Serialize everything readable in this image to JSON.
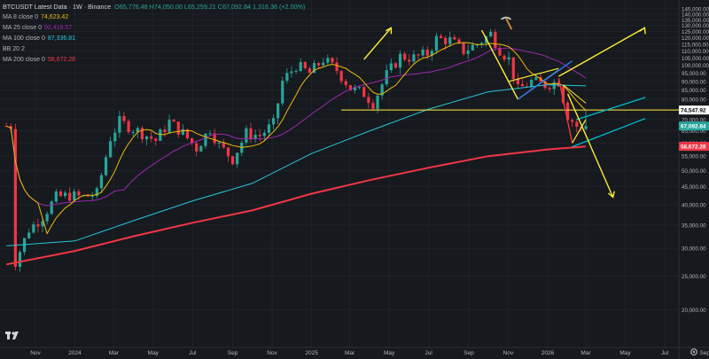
{
  "header": {
    "symbol": "BTCUSDT Latest Data · 1W · Binance",
    "ohlc": "O65,776.48 H74,050.00 L65,259.21 C67,092.84 1,316.36 (+2.00%)"
  },
  "indicators": [
    {
      "label": "MA 8 close 0",
      "value": "74,623.42",
      "color": "#f0b90b"
    },
    {
      "label": "MA 25 close 0",
      "value": "92,418.57",
      "color": "#9c27b0"
    },
    {
      "label": "MA 100 close 0",
      "value": "87,336.81",
      "color": "#26c6da"
    },
    {
      "label": "BB 20 2",
      "value": "",
      "color": "#787b86"
    },
    {
      "label": "MA 200 close 0",
      "value": "58,672.28",
      "color": "#f23645"
    }
  ],
  "colors": {
    "background": "#161a1e",
    "grid": "#1f2329",
    "up": "#26a69a",
    "down": "#f23645",
    "ma8": "#f0b90b",
    "ma25": "#9c27b0",
    "ma100": "#26c6da",
    "ma200": "#f23645",
    "drawing_yellow": "#ffeb3b",
    "drawing_blue": "#2979ff",
    "channel_cyan": "#00bcd4"
  },
  "icons": [
    "tradingview-logo-icon",
    "pickaxe-icon",
    "settings-gear-icon"
  ],
  "chart_data": {
    "type": "candlestick",
    "title": "BTCUSDT Latest Data · 1W · Binance",
    "scale": "log",
    "ylim": [
      16000,
      145000
    ],
    "y_ticks": [
      145000,
      140000,
      135000,
      130000,
      125000,
      120000,
      115000,
      110000,
      105000,
      100000,
      95000,
      90000,
      85000,
      80000,
      75000,
      70000,
      65000,
      60000,
      55000,
      50000,
      45000,
      40000,
      35000,
      30000,
      25000,
      20000
    ],
    "y_tick_labels": [
      "145,000.00",
      "140,000.00",
      "135,000.00",
      "130,000.00",
      "125,000.00",
      "120,000.00",
      "115,000.00",
      "110,000.00",
      "105,000.00",
      "100,000.00",
      "95,000.00",
      "90,000.00",
      "85,000.00",
      "80,000.00",
      "75,000.00",
      "70,000.00",
      "65,000.00",
      "60,000.00",
      "55,000.00",
      "50,000.00",
      "45,000.00",
      "40,000.00",
      "35,000.00",
      "30,000.00",
      "25,000.00",
      "20,000.00"
    ],
    "x_ticks": [
      {
        "label": "Nov",
        "date": "2023-11"
      },
      {
        "label": "2024",
        "date": "2024-01"
      },
      {
        "label": "Mar",
        "date": "2024-03"
      },
      {
        "label": "May",
        "date": "2024-05"
      },
      {
        "label": "Jul",
        "date": "2024-07"
      },
      {
        "label": "Sep",
        "date": "2024-09"
      },
      {
        "label": "Nov",
        "date": "2024-11"
      },
      {
        "label": "2025",
        "date": "2025-01"
      },
      {
        "label": "Mar",
        "date": "2025-03"
      },
      {
        "label": "May",
        "date": "2025-05"
      },
      {
        "label": "Jul",
        "date": "2025-07"
      },
      {
        "label": "Sep",
        "date": "2025-09"
      },
      {
        "label": "Nov",
        "date": "2025-11"
      },
      {
        "label": "2026",
        "date": "2026-01"
      },
      {
        "label": "Mar",
        "date": "2026-03"
      },
      {
        "label": "May",
        "date": "2026-05"
      },
      {
        "label": "Jul",
        "date": "2026-07"
      },
      {
        "label": "Sep",
        "date": "2026-09"
      }
    ],
    "price_labels": [
      {
        "label": "74,547.92",
        "value": 74547.92,
        "bg": "#ffffff",
        "fg": "#000000"
      },
      {
        "label": "67,092.84",
        "value": 67092.84,
        "bg": "#26a69a",
        "fg": "#ffffff"
      },
      {
        "label": "58,672.28",
        "value": 58672.28,
        "bg": "#f23645",
        "fg": "#ffffff"
      }
    ],
    "horizontal_line": 74547.92,
    "series": {
      "close_weekly_approx": [
        {
          "date": "2023-10-01",
          "c": 27500
        },
        {
          "date": "2023-10-22",
          "c": 34000
        },
        {
          "date": "2023-11-12",
          "c": 37000
        },
        {
          "date": "2023-12-03",
          "c": 42000
        },
        {
          "date": "2023-12-24",
          "c": 42500
        },
        {
          "date": "2024-01-14",
          "c": 42000
        },
        {
          "date": "2024-02-04",
          "c": 43000
        },
        {
          "date": "2024-02-25",
          "c": 62000
        },
        {
          "date": "2024-03-10",
          "c": 69000
        },
        {
          "date": "2024-03-24",
          "c": 67000
        },
        {
          "date": "2024-04-14",
          "c": 64000
        },
        {
          "date": "2024-05-05",
          "c": 61000
        },
        {
          "date": "2024-05-26",
          "c": 69000
        },
        {
          "date": "2024-06-16",
          "c": 64000
        },
        {
          "date": "2024-07-07",
          "c": 58000
        },
        {
          "date": "2024-07-28",
          "c": 66000
        },
        {
          "date": "2024-08-11",
          "c": 59000
        },
        {
          "date": "2024-09-01",
          "c": 54000
        },
        {
          "date": "2024-09-22",
          "c": 64000
        },
        {
          "date": "2024-10-13",
          "c": 63000
        },
        {
          "date": "2024-11-03",
          "c": 68000
        },
        {
          "date": "2024-11-17",
          "c": 90000
        },
        {
          "date": "2024-12-08",
          "c": 100000
        },
        {
          "date": "2024-12-29",
          "c": 95000
        },
        {
          "date": "2025-01-19",
          "c": 104000
        },
        {
          "date": "2025-02-09",
          "c": 97000
        },
        {
          "date": "2025-03-02",
          "c": 86000
        },
        {
          "date": "2025-03-23",
          "c": 83000
        },
        {
          "date": "2025-04-06",
          "c": 78000
        },
        {
          "date": "2025-04-27",
          "c": 94000
        },
        {
          "date": "2025-05-18",
          "c": 106000
        },
        {
          "date": "2025-06-08",
          "c": 105000
        },
        {
          "date": "2025-06-29",
          "c": 108000
        },
        {
          "date": "2025-07-13",
          "c": 119000
        },
        {
          "date": "2025-08-03",
          "c": 118000
        },
        {
          "date": "2025-08-24",
          "c": 110000
        },
        {
          "date": "2025-09-14",
          "c": 115000
        },
        {
          "date": "2025-10-05",
          "c": 123000
        },
        {
          "date": "2025-10-19",
          "c": 111000
        },
        {
          "date": "2025-11-02",
          "c": 104000
        },
        {
          "date": "2025-11-16",
          "c": 85000
        },
        {
          "date": "2025-12-07",
          "c": 90000
        },
        {
          "date": "2025-12-28",
          "c": 88000
        },
        {
          "date": "2026-01-18",
          "c": 90000
        },
        {
          "date": "2026-02-01",
          "c": 72000
        },
        {
          "date": "2026-02-15",
          "c": 67000
        },
        {
          "date": "2026-02-22",
          "c": 65776.48
        },
        {
          "date": "2026-03-01",
          "c": 67092.84
        }
      ]
    }
  }
}
